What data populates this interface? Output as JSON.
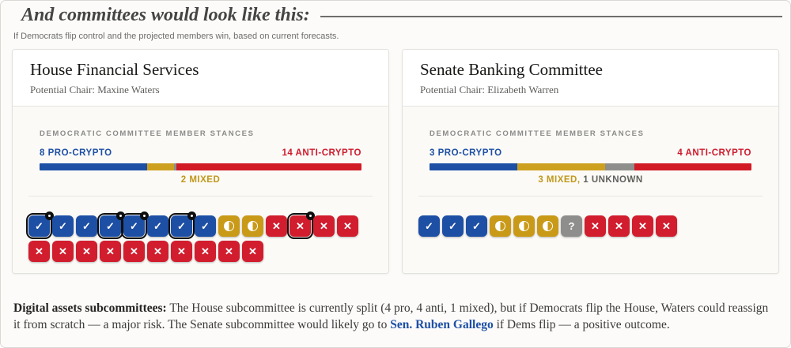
{
  "page": {
    "heading": "And committees would look like this:",
    "caption": "If Democrats flip control and the projected members win, based on current forecasts."
  },
  "colors": {
    "pro": "#1d4fa5",
    "anti": "#d11d2e",
    "mixed": "#c99a18",
    "unknown": "#8e8e8c",
    "link": "#1d4fa5"
  },
  "icons": {
    "pro": "check",
    "anti": "x",
    "mixed": "half-circle",
    "unknown": "question",
    "flag": "black-dot-badge"
  },
  "cards": [
    {
      "title": "House Financial Services",
      "chair": "Potential Chair: Maxine Waters",
      "section_label": "DEMOCRATIC COMMITTEE MEMBER STANCES",
      "left_label": "8 PRO-CRYPTO",
      "right_label": "14 ANTI-CRYPTO",
      "center_label": [
        {
          "text": "2 MIXED",
          "style": "mixed"
        }
      ],
      "bar_segments": [
        {
          "type": "pro",
          "count": 8
        },
        {
          "type": "mixed",
          "count": 2
        },
        {
          "type": "unknown",
          "count": 0
        },
        {
          "type": "anti",
          "count": 14
        }
      ],
      "members": [
        {
          "stance": "pro",
          "flagged": true
        },
        {
          "stance": "pro",
          "flagged": false
        },
        {
          "stance": "pro",
          "flagged": false
        },
        {
          "stance": "pro",
          "flagged": true
        },
        {
          "stance": "pro",
          "flagged": true
        },
        {
          "stance": "pro",
          "flagged": false
        },
        {
          "stance": "pro",
          "flagged": true
        },
        {
          "stance": "pro",
          "flagged": false
        },
        {
          "stance": "mixed",
          "flagged": false
        },
        {
          "stance": "mixed",
          "flagged": false
        },
        {
          "stance": "anti",
          "flagged": false
        },
        {
          "stance": "anti",
          "flagged": true
        },
        {
          "stance": "anti",
          "flagged": false
        },
        {
          "stance": "anti",
          "flagged": false
        },
        {
          "stance": "anti",
          "flagged": false
        },
        {
          "stance": "anti",
          "flagged": false
        },
        {
          "stance": "anti",
          "flagged": false
        },
        {
          "stance": "anti",
          "flagged": false
        },
        {
          "stance": "anti",
          "flagged": false
        },
        {
          "stance": "anti",
          "flagged": false
        },
        {
          "stance": "anti",
          "flagged": false
        },
        {
          "stance": "anti",
          "flagged": false
        },
        {
          "stance": "anti",
          "flagged": false
        },
        {
          "stance": "anti",
          "flagged": false
        }
      ]
    },
    {
      "title": "Senate Banking Committee",
      "chair": "Potential Chair: Elizabeth Warren",
      "section_label": "DEMOCRATIC COMMITTEE MEMBER STANCES",
      "left_label": "3 PRO-CRYPTO",
      "right_label": "4 ANTI-CRYPTO",
      "center_label": [
        {
          "text": "3 MIXED,",
          "style": "mixed"
        },
        {
          "text": "1 UNKNOWN",
          "style": "muted"
        }
      ],
      "bar_segments": [
        {
          "type": "pro",
          "count": 3
        },
        {
          "type": "mixed",
          "count": 3
        },
        {
          "type": "unknown",
          "count": 1
        },
        {
          "type": "anti",
          "count": 4
        }
      ],
      "members": [
        {
          "stance": "pro",
          "flagged": false
        },
        {
          "stance": "pro",
          "flagged": false
        },
        {
          "stance": "pro",
          "flagged": false
        },
        {
          "stance": "mixed",
          "flagged": false
        },
        {
          "stance": "mixed",
          "flagged": false
        },
        {
          "stance": "mixed",
          "flagged": false
        },
        {
          "stance": "unknown",
          "flagged": false
        },
        {
          "stance": "anti",
          "flagged": false
        },
        {
          "stance": "anti",
          "flagged": false
        },
        {
          "stance": "anti",
          "flagged": false
        },
        {
          "stance": "anti",
          "flagged": false
        }
      ]
    }
  ],
  "footnote": {
    "intro": "Digital assets subcommittees:",
    "body": " The House subcommittee is currently split (4 pro, 4 anti, 1 mixed), but if Democrats flip the House, Waters could reassign it from scratch — a major risk. The Senate subcommittee would likely go to ",
    "link": "Sen. Ruben Gallego",
    "tail": " if Dems flip — a positive outcome."
  },
  "chart_data": [
    {
      "type": "bar",
      "subtype": "stacked-horizontal-unit",
      "title": "House Financial Services — Democratic committee member stances",
      "categories": [
        "Pro-crypto",
        "Mixed",
        "Unknown",
        "Anti-crypto"
      ],
      "values": [
        8,
        2,
        0,
        14
      ],
      "total": 24,
      "flagged_member_indices": [
        0,
        3,
        4,
        6,
        11
      ],
      "labels": {
        "left": "8 PRO-CRYPTO",
        "right": "14 ANTI-CRYPTO",
        "center": "2 MIXED"
      }
    },
    {
      "type": "bar",
      "subtype": "stacked-horizontal-unit",
      "title": "Senate Banking Committee — Democratic committee member stances",
      "categories": [
        "Pro-crypto",
        "Mixed",
        "Unknown",
        "Anti-crypto"
      ],
      "values": [
        3,
        3,
        1,
        4
      ],
      "total": 11,
      "flagged_member_indices": [],
      "labels": {
        "left": "3 PRO-CRYPTO",
        "right": "4 ANTI-CRYPTO",
        "center": "3 MIXED, 1 UNKNOWN"
      }
    }
  ]
}
